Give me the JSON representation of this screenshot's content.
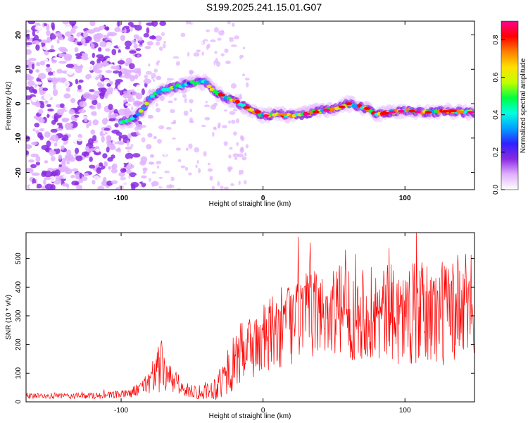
{
  "title": "S199.2025.241.15.01.G07",
  "chart_data": [
    {
      "type": "heatmap",
      "xlabel": "Height of straight line (km)",
      "ylabel": "Frequency (Hz)",
      "xlim": [
        -167,
        149
      ],
      "ylim": [
        -25,
        24
      ],
      "xticks": [
        -100,
        0,
        100
      ],
      "yticks": [
        -20,
        -10,
        0,
        10,
        20
      ],
      "colorbar": {
        "label": "Normalized spectral amplitude",
        "range": [
          0.0,
          0.9
        ],
        "ticks": [
          0.0,
          0.2,
          0.4,
          0.6,
          0.8
        ],
        "colors": [
          "#ffffff",
          "#e0b0ff",
          "#8a2be2",
          "#3020ff",
          "#00a0ff",
          "#00ffe0",
          "#00ff40",
          "#c0ff00",
          "#ffe000",
          "#ff8000",
          "#ff0000",
          "#ff0090"
        ]
      },
      "ridge": {
        "x": [
          -100,
          -92,
          -85,
          -80,
          -75,
          -70,
          -65,
          -60,
          -55,
          -50,
          -45,
          -40,
          -35,
          -30,
          -25,
          -20,
          -15,
          -10,
          -5,
          0,
          10,
          20,
          30,
          40,
          50,
          60,
          70,
          80,
          90,
          100,
          110,
          120,
          130,
          140,
          148
        ],
        "freq": [
          -5.5,
          -4.5,
          -2,
          1.5,
          3,
          4,
          4.5,
          5,
          5.5,
          6,
          6.5,
          6,
          4,
          2.5,
          1.5,
          1,
          -0.5,
          -1.5,
          -2.5,
          -3.5,
          -3,
          -3.5,
          -3,
          -2,
          -1.5,
          0,
          -1,
          -3,
          -2.5,
          -2,
          -2.5,
          -2.5,
          -2,
          -2.5,
          -2.5
        ]
      }
    },
    {
      "type": "line",
      "xlabel": "Height of straight line (km)",
      "ylabel": "SNR (10 * v/v)",
      "xlim": [
        -167,
        149
      ],
      "ylim": [
        0,
        590
      ],
      "xticks": [
        -100,
        0,
        100
      ],
      "yticks": [
        0,
        100,
        200,
        300,
        400,
        500
      ],
      "color": "#ff0000",
      "envelope": {
        "x": [
          -167,
          -140,
          -110,
          -95,
          -85,
          -78,
          -72,
          -68,
          -64,
          -60,
          -55,
          -50,
          -45,
          -40,
          -35,
          -30,
          -25,
          -20,
          -15,
          -10,
          -5,
          0,
          10,
          20,
          30,
          40,
          50,
          60,
          70,
          80,
          90,
          100,
          110,
          120,
          130,
          140,
          149
        ],
        "mean": [
          20,
          20,
          22,
          28,
          50,
          90,
          120,
          100,
          70,
          55,
          40,
          40,
          35,
          40,
          45,
          70,
          100,
          140,
          170,
          190,
          200,
          210,
          250,
          280,
          300,
          310,
          320,
          310,
          320,
          300,
          310,
          300,
          310,
          300,
          320,
          320,
          340
        ],
        "amplitude": [
          10,
          10,
          12,
          15,
          25,
          60,
          100,
          70,
          40,
          30,
          25,
          25,
          30,
          30,
          40,
          60,
          80,
          100,
          110,
          120,
          120,
          130,
          140,
          150,
          150,
          150,
          160,
          170,
          170,
          170,
          170,
          180,
          180,
          190,
          190,
          200,
          180
        ]
      }
    }
  ]
}
